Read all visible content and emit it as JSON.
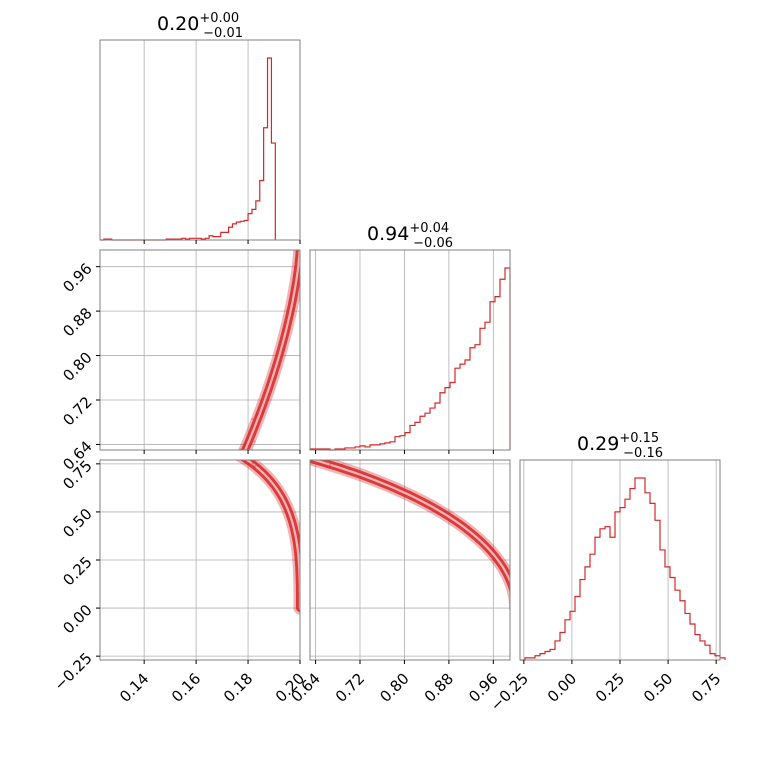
{
  "chart_data": {
    "type": "corner",
    "color": "#d62728",
    "params": [
      {
        "title": {
          "value": "0.20",
          "plus": "+0.00",
          "minus": "−0.01"
        },
        "range": [
          0.123,
          0.2
        ],
        "ticks": [
          0.14,
          0.16,
          0.18,
          0.2
        ],
        "tick_labels": [
          "0.14",
          "0.16",
          "0.18",
          "0.20"
        ],
        "hist": {
          "edges_start": 0.123,
          "bin_width": 0.0015,
          "counts": [
            0,
            1,
            1,
            0,
            0,
            0,
            0,
            0,
            0,
            0,
            0,
            0,
            0,
            0,
            0,
            0,
            0,
            1,
            1,
            1,
            1,
            2,
            1,
            2,
            2,
            2,
            1,
            2,
            5,
            4,
            4,
            9,
            9,
            15,
            19,
            21,
            22,
            23,
            31,
            36,
            46,
            70,
            132,
            214,
            114
          ]
        }
      },
      {
        "title": {
          "value": "0.94",
          "plus": "+0.04",
          "minus": "−0.06"
        },
        "range": [
          0.63,
          0.99
        ],
        "ticks": [
          0.64,
          0.72,
          0.8,
          0.88,
          0.96
        ],
        "tick_labels": [
          "0.64",
          "0.72",
          "0.80",
          "0.88",
          "0.96"
        ],
        "hist": {
          "edges_start": 0.63,
          "bin_width": 0.009,
          "counts": [
            1,
            1,
            1,
            1,
            0,
            1,
            1,
            2,
            2,
            3,
            4,
            3,
            5,
            5,
            6,
            7,
            8,
            13,
            14,
            17,
            24,
            27,
            33,
            36,
            41,
            46,
            56,
            61,
            66,
            80,
            84,
            88,
            100,
            103,
            119,
            125,
            145,
            150,
            167,
            178
          ]
        }
      },
      {
        "title": {
          "value": "0.29",
          "plus": "+0.15",
          "minus": "−0.16"
        },
        "range": [
          -0.27,
          0.77
        ],
        "ticks": [
          -0.25,
          0.0,
          0.25,
          0.5,
          0.75
        ],
        "tick_labels": [
          "−0.25",
          "0.00",
          "0.25",
          "0.50",
          "0.75"
        ],
        "hist": {
          "edges_start": -0.27,
          "bin_width": 0.026,
          "counts": [
            0,
            1,
            1,
            2,
            3,
            4,
            5,
            9,
            13,
            19,
            23,
            30,
            38,
            44,
            50,
            58,
            62,
            63,
            58,
            70,
            72,
            76,
            81,
            86,
            86,
            79,
            74,
            66,
            52,
            44,
            39,
            33,
            28,
            22,
            17,
            12,
            9,
            7,
            3,
            2,
            1
          ]
        }
      }
    ],
    "curve": {
      "t_range": [
        0,
        1.2
      ],
      "x": "0.2 - 0.03 * t^3",
      "y": "cos(t)",
      "z": "sin(t)"
    }
  }
}
